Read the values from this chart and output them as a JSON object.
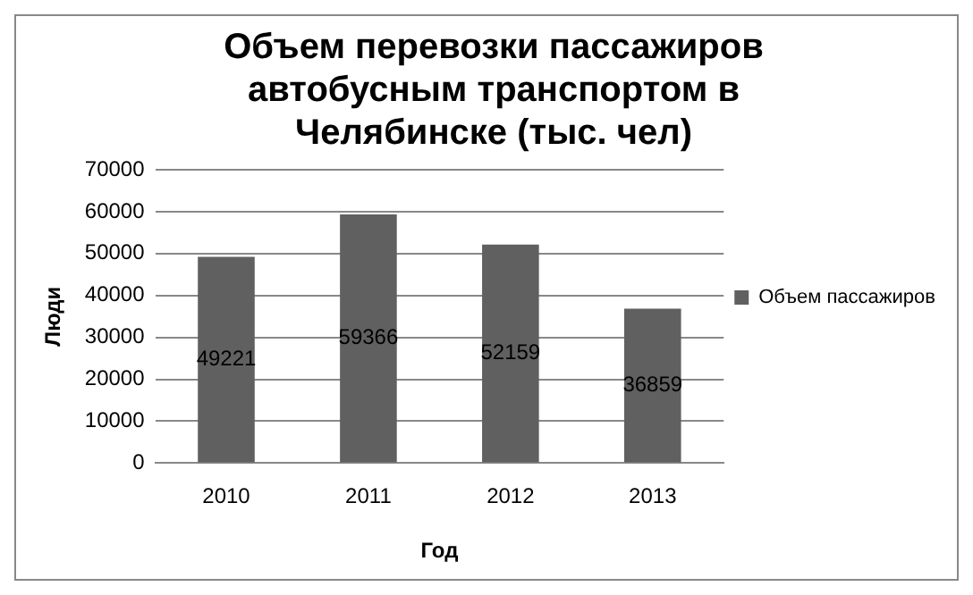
{
  "chart_data": {
    "type": "bar",
    "title": "Объем перевозки пассажиров автобусным транспортом в Челябинске (тыс. чел)",
    "xlabel": "Год",
    "ylabel": "Люди",
    "categories": [
      "2010",
      "2011",
      "2012",
      "2013"
    ],
    "series": [
      {
        "name": "Объем пассажиров",
        "color": "#606060",
        "values": [
          49221,
          59366,
          52159,
          36859
        ]
      }
    ],
    "ylim": [
      0,
      70000
    ],
    "yticks": [
      0,
      10000,
      20000,
      30000,
      40000,
      50000,
      60000,
      70000
    ],
    "grid": "y",
    "legend": "right",
    "data_labels": true
  }
}
